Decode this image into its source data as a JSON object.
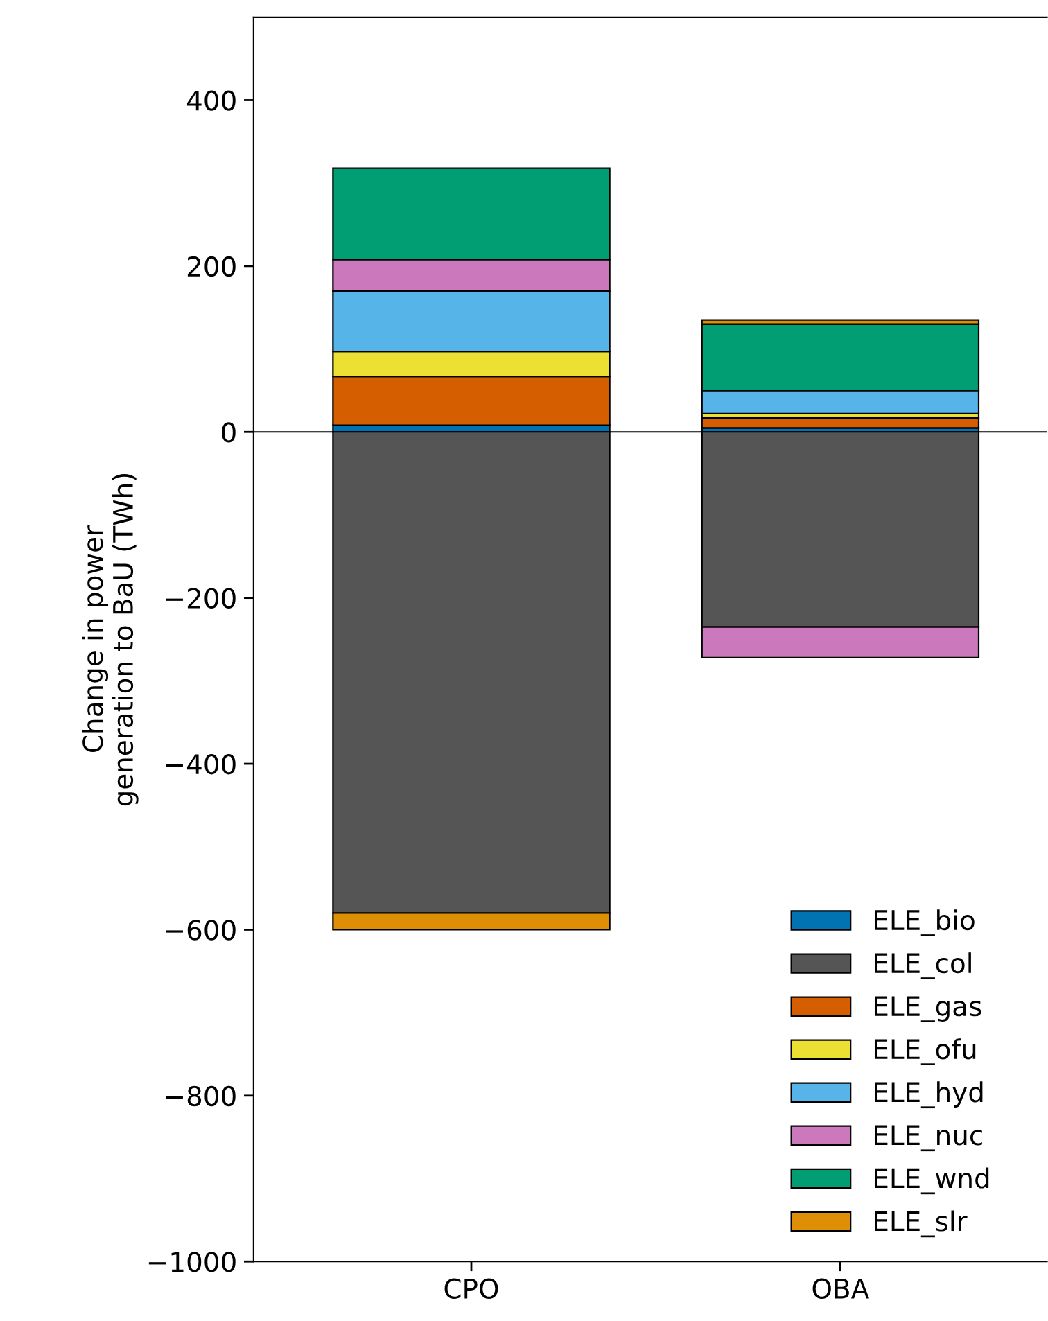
{
  "chart_data": {
    "type": "bar",
    "stacked": true,
    "ylabel": "Change in power\ngeneration to BaU (TWh)",
    "categories": [
      "CPO",
      "OBA"
    ],
    "series": [
      {
        "name": "ELE_bio",
        "color": "#0173b2",
        "values": [
          8,
          5
        ]
      },
      {
        "name": "ELE_col",
        "color": "#555555",
        "values": [
          -580,
          -235
        ]
      },
      {
        "name": "ELE_gas",
        "color": "#d55e00",
        "values": [
          59,
          12
        ]
      },
      {
        "name": "ELE_ofu",
        "color": "#ece133",
        "values": [
          30,
          5
        ]
      },
      {
        "name": "ELE_hyd",
        "color": "#56b4e9",
        "values": [
          73,
          28
        ]
      },
      {
        "name": "ELE_nuc",
        "color": "#cc78bc",
        "values": [
          38,
          -37
        ]
      },
      {
        "name": "ELE_wnd",
        "color": "#029e73",
        "values": [
          110,
          80
        ]
      },
      {
        "name": "ELE_slr",
        "color": "#de8f05",
        "values": [
          -20,
          5
        ]
      }
    ],
    "ylim": [
      -1000,
      500
    ],
    "yticks": [
      {
        "value": -1000,
        "label": "−1000"
      },
      {
        "value": -800,
        "label": "−800"
      },
      {
        "value": -600,
        "label": "−600"
      },
      {
        "value": -400,
        "label": "−400"
      },
      {
        "value": -200,
        "label": "−200"
      },
      0,
      200,
      400
    ],
    "ref_lines": [
      {
        "axis": "y",
        "value": 0,
        "color": "#000000"
      }
    ],
    "grid": false,
    "legend": "bottom right"
  }
}
